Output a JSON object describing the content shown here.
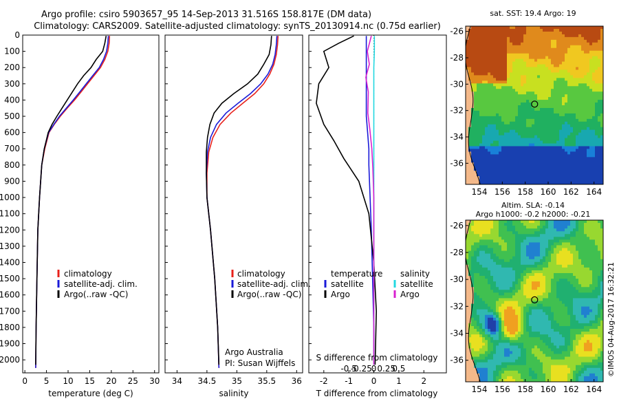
{
  "title": {
    "line1": "Argo profile: csiro 5903657_95 14-Sep-2013 31.516S 158.817E (DM data)",
    "line2": "Climatology: CARS2009. Satellite-adjusted climatology: synTS_20130914.nc (0.75d earlier)"
  },
  "colors": {
    "clim": "#e8201a",
    "sat": "#1a1ad8",
    "argo": "#000000",
    "sal_sat": "#22d8e0",
    "sal_argo": "#d820d0"
  },
  "chart_data": [
    {
      "type": "line",
      "id": "temperature",
      "xlabel": "temperature (deg C)",
      "ylabel": "",
      "xlim": [
        -0.5,
        31
      ],
      "ylim": [
        2080,
        0
      ],
      "xticks": [
        0,
        5,
        10,
        15,
        20,
        25,
        30
      ],
      "yticks": [
        0,
        100,
        200,
        300,
        400,
        500,
        600,
        700,
        800,
        900,
        1000,
        1100,
        1200,
        1300,
        1400,
        1500,
        1600,
        1700,
        1800,
        1900,
        2000
      ],
      "legend": [
        {
          "label": "climatology",
          "color_key": "clim"
        },
        {
          "label": "satellite-adj. clim.",
          "color_key": "sat"
        },
        {
          "label": "Argo(..raw -QC)",
          "color_key": "argo"
        }
      ],
      "series": [
        {
          "name": "climatology",
          "color_key": "clim",
          "x": [
            19.6,
            19.5,
            19.2,
            18.5,
            17.5,
            16.0,
            14.5,
            13.0,
            11.5,
            9.8,
            8.2,
            6.8,
            5.6,
            4.6,
            3.9,
            3.4,
            3.0,
            2.8,
            2.6,
            2.5
          ],
          "y": [
            5,
            50,
            100,
            150,
            200,
            250,
            300,
            350,
            400,
            450,
            500,
            550,
            600,
            700,
            800,
            1000,
            1200,
            1500,
            1800,
            2050
          ]
        },
        {
          "name": "satellite-adj. clim.",
          "color_key": "sat",
          "x": [
            19.3,
            19.2,
            18.9,
            18.2,
            17.2,
            15.7,
            14.2,
            12.7,
            11.2,
            9.6,
            8.0,
            6.7,
            5.5,
            4.5,
            3.9,
            3.4,
            3.0,
            2.8,
            2.6,
            2.5
          ],
          "y": [
            5,
            50,
            100,
            150,
            200,
            250,
            300,
            350,
            400,
            450,
            500,
            550,
            600,
            700,
            800,
            1000,
            1200,
            1500,
            1800,
            2050
          ]
        },
        {
          "name": "Argo(..raw -QC)",
          "color_key": "argo",
          "x": [
            18.8,
            18.5,
            18.0,
            16.5,
            15.3,
            13.6,
            12.2,
            11.0,
            9.8,
            8.6,
            7.4,
            6.3,
            5.4,
            4.5,
            3.9,
            3.4,
            3.0,
            2.8,
            2.6,
            2.5
          ],
          "y": [
            5,
            50,
            100,
            150,
            200,
            250,
            300,
            350,
            400,
            450,
            500,
            550,
            600,
            700,
            800,
            1000,
            1200,
            1500,
            1800,
            2030
          ]
        }
      ]
    },
    {
      "type": "line",
      "id": "salinity",
      "xlabel": "salinity",
      "ylabel": "",
      "xlim": [
        33.8,
        36.1
      ],
      "ylim": [
        2080,
        0
      ],
      "xticks": [
        34,
        34.5,
        35,
        35.5,
        36
      ],
      "legend": [
        {
          "label": "climatology",
          "color_key": "clim"
        },
        {
          "label": "satellite-adj. clim.",
          "color_key": "sat"
        },
        {
          "label": "Argo(..raw -QC)",
          "color_key": "argo"
        }
      ],
      "annotation": [
        "Argo Australia",
        "PI: Susan Wijffels"
      ],
      "series": [
        {
          "name": "climatology",
          "color_key": "clim",
          "x": [
            35.69,
            35.68,
            35.66,
            35.62,
            35.55,
            35.45,
            35.3,
            35.1,
            34.9,
            34.72,
            34.6,
            34.53,
            34.5,
            34.5,
            34.56,
            34.63,
            34.68,
            34.7
          ],
          "y": [
            5,
            60,
            120,
            180,
            240,
            300,
            360,
            420,
            480,
            550,
            630,
            720,
            850,
            1000,
            1200,
            1500,
            1800,
            2050
          ]
        },
        {
          "name": "satellite-adj. clim.",
          "color_key": "sat",
          "x": [
            35.67,
            35.66,
            35.64,
            35.6,
            35.52,
            35.4,
            35.23,
            35.02,
            34.82,
            34.66,
            34.56,
            34.51,
            34.49,
            34.5,
            34.56,
            34.63,
            34.68,
            34.7
          ],
          "y": [
            5,
            60,
            120,
            180,
            240,
            300,
            360,
            420,
            480,
            550,
            630,
            720,
            850,
            1000,
            1200,
            1500,
            1800,
            2050
          ]
        },
        {
          "name": "Argo(..raw -QC)",
          "color_key": "argo",
          "x": [
            35.58,
            35.57,
            35.54,
            35.45,
            35.35,
            35.18,
            34.95,
            34.75,
            34.62,
            34.55,
            34.51,
            34.49,
            34.49,
            34.5,
            34.56,
            34.63,
            34.68,
            34.7
          ],
          "y": [
            5,
            60,
            120,
            180,
            240,
            300,
            360,
            420,
            480,
            550,
            630,
            720,
            850,
            1000,
            1200,
            1500,
            1800,
            2030
          ]
        }
      ]
    },
    {
      "type": "line",
      "id": "difference",
      "xlabel": "T difference from climatology",
      "xlabel_top": "S difference from climatology",
      "xlim": [
        -2.6,
        2.9
      ],
      "ylim": [
        2080,
        0
      ],
      "xticks_T": [
        -2,
        -1,
        0,
        1,
        2
      ],
      "xticks_S": [
        -0.5,
        -0.25,
        0,
        0.25,
        0.5
      ],
      "legend": {
        "temperature_header": "temperature",
        "salinity_header": "salinity",
        "rows": [
          {
            "label": "satellite",
            "color_key": "sat",
            "group": "temperature"
          },
          {
            "label": "Argo",
            "color_key": "argo",
            "group": "temperature"
          },
          {
            "label": "satellite",
            "color_key": "sal_sat",
            "group": "salinity"
          },
          {
            "label": "Argo",
            "color_key": "sal_argo",
            "group": "salinity"
          }
        ]
      },
      "series": [
        {
          "name": "T satellite",
          "color_key": "sat",
          "x": [
            -0.3,
            -0.3,
            -0.3,
            -0.3,
            -0.3,
            -0.3,
            -0.25,
            -0.2,
            -0.2,
            -0.15,
            -0.1,
            -0.05,
            0,
            0
          ],
          "y": [
            5,
            100,
            200,
            300,
            400,
            500,
            600,
            700,
            800,
            1000,
            1200,
            1500,
            1800,
            2000
          ]
        },
        {
          "name": "T Argo",
          "color_key": "argo",
          "x": [
            -0.8,
            -1.4,
            -2.0,
            -1.8,
            -2.2,
            -2.3,
            -2.0,
            -1.6,
            -1.2,
            -0.6,
            -0.2,
            0,
            0.1,
            0.05
          ],
          "y": [
            5,
            50,
            100,
            200,
            300,
            420,
            550,
            650,
            760,
            900,
            1100,
            1400,
            1700,
            2030
          ]
        },
        {
          "name": "S satellite",
          "color_key": "sal_sat",
          "x": [
            0.01,
            0.01,
            0.0,
            0.0,
            0.0,
            0.0,
            0.0,
            0.0,
            0.0,
            0.0
          ],
          "y": [
            5,
            100,
            200,
            300,
            500,
            700,
            900,
            1200,
            1600,
            2030
          ]
        },
        {
          "name": "S Argo",
          "color_key": "sal_argo",
          "x": [
            -0.05,
            -0.13,
            -0.09,
            -0.16,
            -0.11,
            -0.12,
            -0.08,
            -0.04,
            -0.02,
            0.0,
            0.0
          ],
          "y": [
            5,
            100,
            180,
            260,
            350,
            480,
            580,
            700,
            820,
            1000,
            2030
          ]
        }
      ]
    },
    {
      "type": "heatmap",
      "id": "sst_map",
      "title": "sat. SST: 19.4  Argo: 19",
      "xticks": [
        154,
        156,
        158,
        160,
        162,
        164
      ],
      "yticks": [
        -26,
        -28,
        -30,
        -32,
        -34,
        -36
      ],
      "xlim": [
        152.8,
        164.8
      ],
      "ylim": [
        -37.6,
        -25.6
      ],
      "marker": {
        "lon": 158.817,
        "lat": -31.516
      }
    },
    {
      "type": "heatmap",
      "id": "sla_map",
      "title_line1": "Altim. SLA: -0.14",
      "title_line2": "Argo h1000: -0.2  h2000: -0.21",
      "xticks": [
        154,
        156,
        158,
        160,
        162,
        164
      ],
      "yticks": [
        -26,
        -28,
        -30,
        -32,
        -34,
        -36
      ],
      "xlim": [
        152.8,
        164.8
      ],
      "ylim": [
        -37.6,
        -25.6
      ],
      "marker": {
        "lon": 158.817,
        "lat": -31.516
      }
    }
  ],
  "footer_stamp": "©IMOS 04-Aug-2017 16:32:21"
}
